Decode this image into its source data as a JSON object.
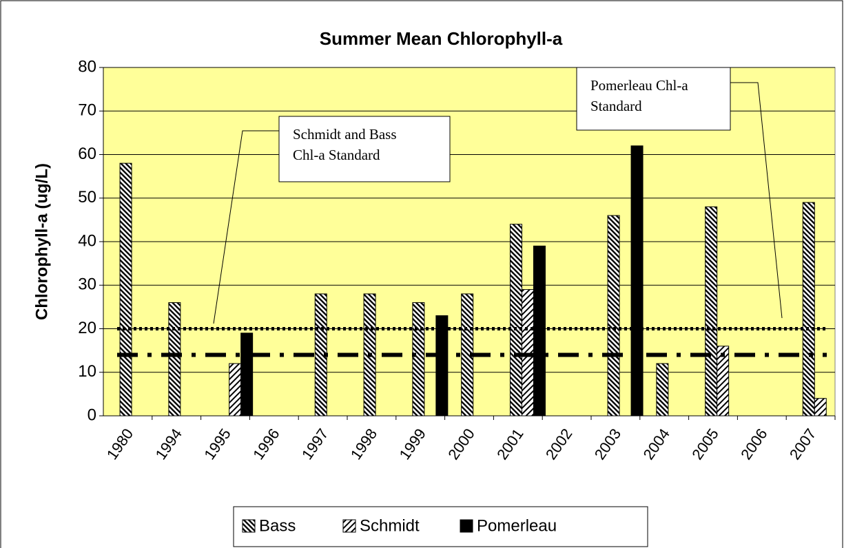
{
  "chart_data": {
    "type": "bar",
    "title": "Summer Mean Chlorophyll-a",
    "y_label": "Chlorophyll-a (ug/L)",
    "categories": [
      "1980",
      "1994",
      "1995",
      "1996",
      "1997",
      "1998",
      "1999",
      "2000",
      "2001",
      "2002",
      "2003",
      "2004",
      "2005",
      "2006",
      "2007"
    ],
    "series": [
      {
        "name": "Bass",
        "color": "#000000",
        "values": [
          58,
          26,
          null,
          null,
          28,
          28,
          26,
          28,
          44,
          null,
          46,
          12,
          48,
          null,
          49
        ]
      },
      {
        "name": "Schmidt",
        "color": "#000000",
        "values": [
          null,
          null,
          12,
          null,
          null,
          null,
          null,
          null,
          29,
          null,
          null,
          null,
          16,
          null,
          4
        ]
      },
      {
        "name": "Pomerleau",
        "color": "#000000",
        "values": [
          null,
          null,
          19,
          null,
          null,
          null,
          23,
          null,
          39,
          null,
          62,
          null,
          null,
          null,
          null
        ]
      }
    ],
    "reference_lines": [
      {
        "lines": [
          "Schmidt and Bass",
          "Chl-a Standard"
        ],
        "value": 20
      },
      {
        "lines": [
          "Pomerleau Chl-a",
          "Standard"
        ],
        "value": 14
      }
    ],
    "ylim": [
      0,
      80
    ],
    "yticks": [
      0,
      10,
      20,
      30,
      40,
      50,
      60,
      70,
      80
    ],
    "grid": true,
    "legend": "bottom"
  }
}
